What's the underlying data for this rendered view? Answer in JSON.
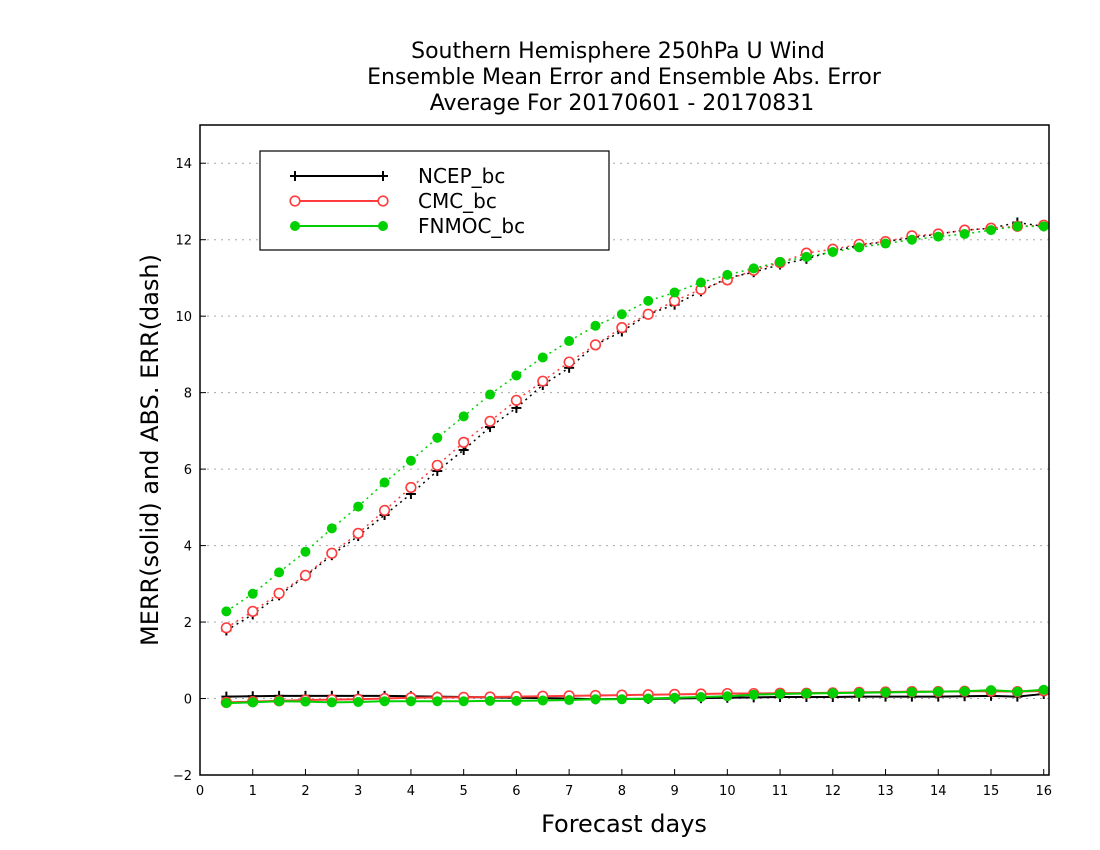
{
  "chart_data": {
    "type": "line",
    "title": [
      "Southern Hemisphere 250hPa U Wind",
      "Ensemble Mean Error and Ensemble Abs. Error",
      "Average For 20170601 - 20170831"
    ],
    "xlabel": "Forecast days",
    "ylabel": "MERR(solid) and ABS. ERR(dash)",
    "xlim": [
      0,
      16.1
    ],
    "ylim": [
      -2,
      15
    ],
    "xticks": [
      0,
      1,
      2,
      3,
      4,
      5,
      6,
      7,
      8,
      9,
      10,
      11,
      12,
      13,
      14,
      15,
      16
    ],
    "xtick_labels": [
      "0",
      "1",
      "2",
      "3",
      "4",
      "5",
      "6",
      "7",
      "8",
      "9",
      "10",
      "11",
      "12",
      "13",
      "14",
      "15",
      "16"
    ],
    "yticks": [
      -2,
      0,
      2,
      4,
      6,
      8,
      10,
      12,
      14
    ],
    "ytick_labels": [
      "−2",
      "0",
      "2",
      "4",
      "6",
      "8",
      "10",
      "12",
      "14"
    ],
    "grid": true,
    "legend_position": "top-left",
    "x": [
      0.5,
      1,
      1.5,
      2,
      2.5,
      3,
      3.5,
      4,
      4.5,
      5,
      5.5,
      6,
      6.5,
      7,
      7.5,
      8,
      8.5,
      9,
      9.5,
      10,
      10.5,
      11,
      11.5,
      12,
      12.5,
      13,
      13.5,
      14,
      14.5,
      15,
      15.5,
      16
    ],
    "series": [
      {
        "name": "NCEP_bc",
        "color": "#000000",
        "marker": "plus",
        "merr": [
          0.05,
          0.06,
          0.07,
          0.07,
          0.07,
          0.07,
          0.07,
          0.06,
          0.05,
          0.04,
          0.03,
          0.02,
          0.01,
          0.0,
          -0.02,
          -0.01,
          -0.01,
          0.0,
          0.01,
          0.02,
          0.03,
          0.04,
          0.04,
          0.04,
          0.05,
          0.05,
          0.05,
          0.05,
          0.06,
          0.07,
          0.05,
          0.12
        ],
        "abs_err": [
          1.78,
          2.2,
          2.7,
          3.2,
          3.75,
          4.25,
          4.8,
          5.35,
          5.95,
          6.5,
          7.1,
          7.6,
          8.2,
          8.65,
          9.25,
          9.6,
          10.05,
          10.3,
          10.65,
          11.0,
          11.15,
          11.35,
          11.5,
          11.7,
          11.85,
          11.95,
          12.05,
          12.15,
          12.25,
          12.3,
          12.45,
          12.35
        ]
      },
      {
        "name": "CMC_bc",
        "color": "#ff3b3b",
        "marker": "open-circle",
        "merr": [
          -0.1,
          -0.08,
          -0.06,
          -0.04,
          -0.03,
          -0.02,
          0.0,
          0.02,
          0.03,
          0.03,
          0.04,
          0.05,
          0.06,
          0.07,
          0.08,
          0.09,
          0.1,
          0.11,
          0.12,
          0.13,
          0.13,
          0.14,
          0.14,
          0.15,
          0.16,
          0.17,
          0.18,
          0.18,
          0.19,
          0.19,
          0.18,
          0.2
        ],
        "abs_err": [
          1.85,
          2.28,
          2.75,
          3.22,
          3.8,
          4.32,
          4.92,
          5.52,
          6.1,
          6.7,
          7.25,
          7.8,
          8.3,
          8.8,
          9.25,
          9.7,
          10.05,
          10.4,
          10.7,
          10.95,
          11.2,
          11.4,
          11.65,
          11.75,
          11.88,
          11.95,
          12.1,
          12.15,
          12.25,
          12.3,
          12.35,
          12.38
        ]
      },
      {
        "name": "FNMOC_bc",
        "color": "#00d000",
        "marker": "filled-circle",
        "merr": [
          -0.12,
          -0.1,
          -0.07,
          -0.08,
          -0.1,
          -0.09,
          -0.07,
          -0.07,
          -0.07,
          -0.07,
          -0.06,
          -0.06,
          -0.05,
          -0.04,
          -0.02,
          -0.02,
          0.0,
          0.02,
          0.04,
          0.06,
          0.1,
          0.12,
          0.13,
          0.14,
          0.15,
          0.16,
          0.17,
          0.18,
          0.19,
          0.22,
          0.18,
          0.23
        ],
        "abs_err": [
          2.28,
          2.74,
          3.3,
          3.84,
          4.45,
          5.02,
          5.65,
          6.22,
          6.82,
          7.38,
          7.95,
          8.45,
          8.92,
          9.35,
          9.75,
          10.05,
          10.4,
          10.62,
          10.88,
          11.08,
          11.25,
          11.42,
          11.55,
          11.68,
          11.8,
          11.9,
          12.0,
          12.08,
          12.15,
          12.25,
          12.35,
          12.35
        ]
      }
    ]
  }
}
